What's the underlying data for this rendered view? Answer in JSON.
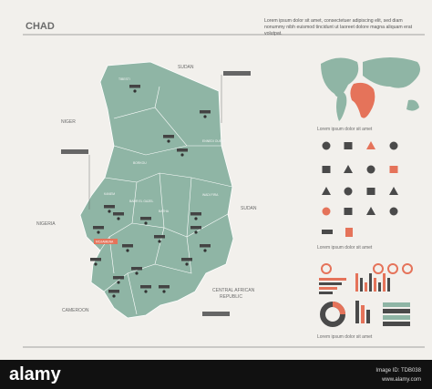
{
  "header": {
    "title": "CHAD",
    "description": "Lorem ipsum dolor sit amet, consectetuer adipiscing elit, sed diam nonummy nibh euismod tincidunt ut laoreet dolore magna aliquam erat volutpat."
  },
  "map": {
    "neighbors": {
      "sudan_north": "SUDAN",
      "niger": "NIGER",
      "nigeria": "NIGERIA",
      "sudan_east": "SUDAN",
      "central_african_republic": [
        "CENTRAL AFRICAN",
        "REPUBLIC"
      ],
      "cameroon": "CAMEROON"
    },
    "capital": "N'DJAMENA",
    "regions": [
      "TIBESTI",
      "ENNEDI OUEST",
      "BORKOU",
      "KANEM",
      "BAHR EL GAZEL",
      "BATHA",
      "WADI FIRA"
    ]
  },
  "sidebar": {
    "captions": [
      "Lorem ipsum dolor sit amet",
      "Lorem ipsum dolor sit amet",
      "Lorem ipsum dolor sit amet"
    ]
  },
  "footer": {
    "brand": "alamy",
    "image_id": "Image ID: TDB038",
    "url": "www.alamy.com"
  }
}
